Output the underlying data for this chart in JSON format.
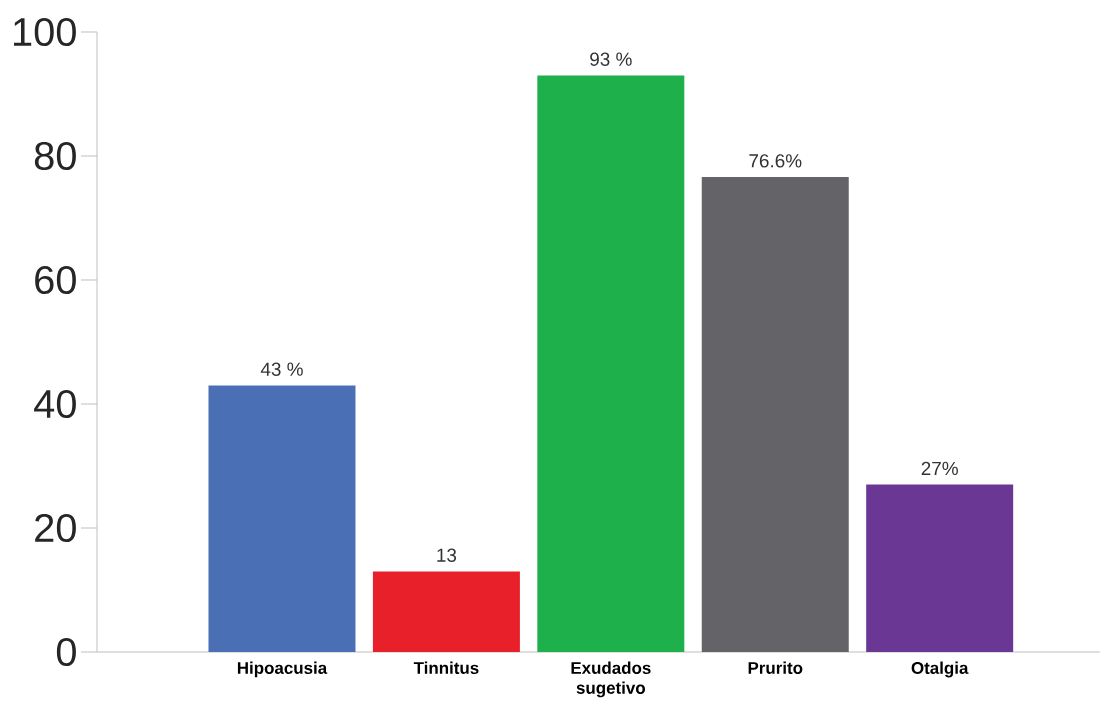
{
  "chart_data": {
    "type": "bar",
    "categories": [
      "Hipoacusia",
      "Tinnitus",
      "Exudados sugetivo",
      "Prurito",
      "Otalgia"
    ],
    "values": [
      43,
      13,
      93,
      76.6,
      27
    ],
    "colors": [
      "#4a6fb5",
      "#e8202a",
      "#1db04b",
      "#646468",
      "#6a3794"
    ],
    "value_labels": [
      "43 %",
      "13",
      "93 %",
      "76.6%",
      "27%"
    ],
    "ylim": [
      0,
      100
    ],
    "yticks": [
      0,
      20,
      40,
      60,
      80,
      100
    ]
  }
}
